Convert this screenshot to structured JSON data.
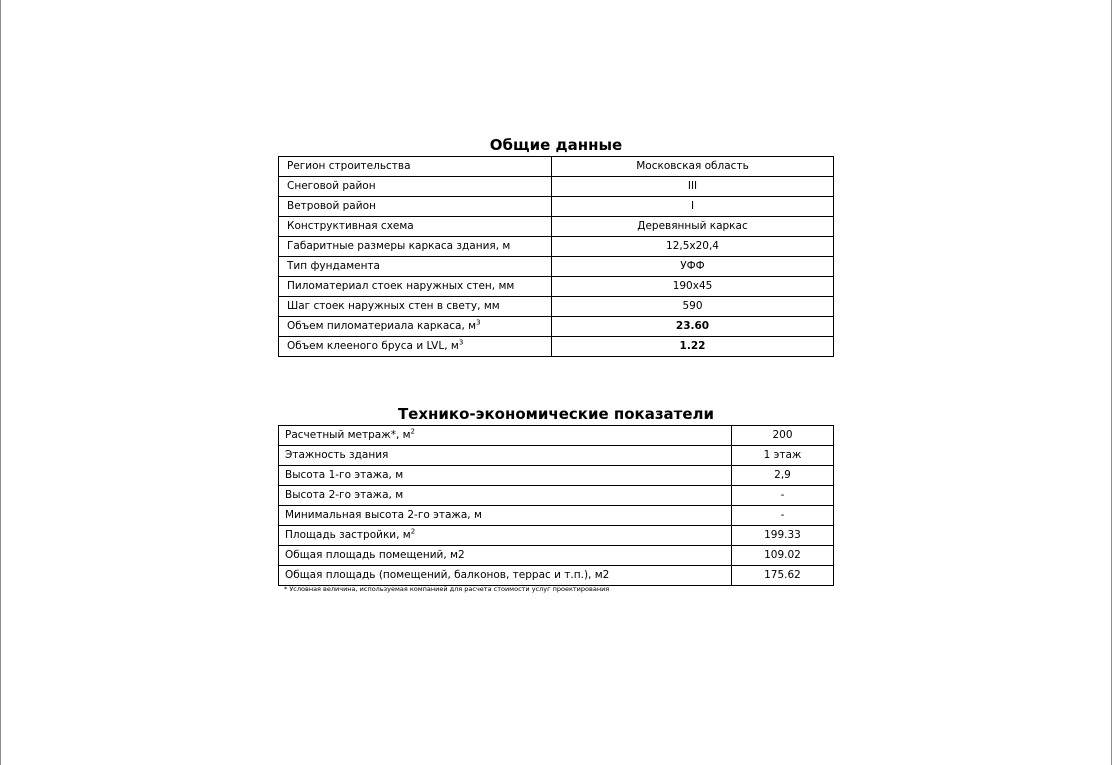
{
  "general": {
    "title": "Общие данные",
    "rows": [
      {
        "label": "Регион строительства",
        "sup": "",
        "value": "Московская область",
        "bold": false
      },
      {
        "label": "Снеговой район",
        "sup": "",
        "value": "III",
        "bold": false
      },
      {
        "label": "Ветровой район",
        "sup": "",
        "value": "I",
        "bold": false
      },
      {
        "label": "Конструктивная схема",
        "sup": "",
        "value": "Деревянный каркас",
        "bold": false
      },
      {
        "label": "Габаритные размеры каркаса здания, м",
        "sup": "",
        "value": "12,5x20,4",
        "bold": false
      },
      {
        "label": "Тип фундамента",
        "sup": "",
        "value": "УФФ",
        "bold": false
      },
      {
        "label": "Пиломатериал стоек наружных стен, мм",
        "sup": "",
        "value": "190x45",
        "bold": false
      },
      {
        "label": "Шаг стоек наружных стен в свету, мм",
        "sup": "",
        "value": "590",
        "bold": false
      },
      {
        "label": "Объем пиломатериала каркаса, м",
        "sup": "3",
        "value": "23.60",
        "bold": true
      },
      {
        "label": "Объем клееного бруса и LVL, м",
        "sup": "3",
        "value": "1.22",
        "bold": true
      }
    ]
  },
  "indicators": {
    "title": "Технико-экономические показатели",
    "rows": [
      {
        "label": "Расчетный метраж*, м",
        "sup": "2",
        "value": "200"
      },
      {
        "label": "Этажность здания",
        "sup": "",
        "value": "1 этаж"
      },
      {
        "label": "Высота 1-го этажа, м",
        "sup": "",
        "value": "2,9"
      },
      {
        "label": "Высота 2-го этажа, м",
        "sup": "",
        "value": "-"
      },
      {
        "label": "Минимальная высота 2-го этажа, м",
        "sup": "",
        "value": "-"
      },
      {
        "label": "Площадь застройки, м",
        "sup": "2",
        "value": "199.33"
      },
      {
        "label": "Общая площадь помещений, м2",
        "sup": "",
        "value": "109.02"
      },
      {
        "label": "Общая площадь (помещений, балконов, террас и т.п.), м2",
        "sup": "",
        "value": "175.62"
      }
    ],
    "footnote": "* Условная величина, используемая компанией для расчета стоимости услуг проектирования"
  }
}
